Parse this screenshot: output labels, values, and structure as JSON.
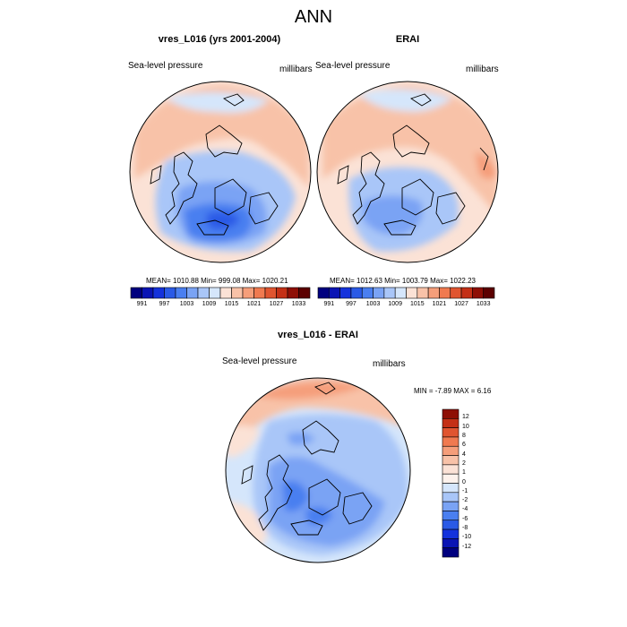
{
  "figure": {
    "title": "ANN",
    "units": "millibars",
    "variable": "Sea-level pressure"
  },
  "panels": [
    {
      "title": "vres_L016 (yrs 2001-2004)",
      "left_label": "Sea-level pressure",
      "right_label": "millibars",
      "stats": "MEAN= 1010.88  Min= 999.08  Max= 1020.21"
    },
    {
      "title": "ERAI",
      "left_label": "Sea-level pressure",
      "right_label": "millibars",
      "stats": "MEAN= 1012.63  Min= 1003.79  Max= 1022.23"
    },
    {
      "title": "vres_L016 - ERAI",
      "left_label": "Sea-level pressure",
      "right_label": "millibars",
      "stats": "MIN =  -7.89 MAX =   6.16"
    }
  ],
  "chart_data": [
    {
      "type": "heatmap",
      "title": "vres_L016 (yrs 2001-2004)",
      "projection": "north polar stereographic",
      "variable": "Sea-level pressure",
      "units": "millibars",
      "mean": 1010.88,
      "min": 999.08,
      "max": 1020.21,
      "colorbar_levels": [
        991,
        994,
        997,
        1000,
        1003,
        1006,
        1009,
        1012,
        1015,
        1018,
        1021,
        1024,
        1027,
        1030,
        1033
      ],
      "colorbar_labels": [
        "991",
        "997",
        "1003",
        "1009",
        "1015",
        "1021",
        "1027",
        "1033"
      ],
      "colorbar_colors": [
        "#00007f",
        "#0a14b4",
        "#1432dc",
        "#2a5ae6",
        "#4a7ff0",
        "#7aa3f4",
        "#a9c6f8",
        "#d5e6fb",
        "#fbe2d6",
        "#f8c2a8",
        "#f59e7a",
        "#f07a50",
        "#e05530",
        "#c43016",
        "#8e0f05",
        "#5c0000"
      ]
    },
    {
      "type": "heatmap",
      "title": "ERAI",
      "projection": "north polar stereographic",
      "variable": "Sea-level pressure",
      "units": "millibars",
      "mean": 1012.63,
      "min": 1003.79,
      "max": 1022.23,
      "colorbar_levels": [
        991,
        994,
        997,
        1000,
        1003,
        1006,
        1009,
        1012,
        1015,
        1018,
        1021,
        1024,
        1027,
        1030,
        1033
      ],
      "colorbar_labels": [
        "991",
        "997",
        "1003",
        "1009",
        "1015",
        "1021",
        "1027",
        "1033"
      ],
      "colorbar_colors": [
        "#00007f",
        "#0a14b4",
        "#1432dc",
        "#2a5ae6",
        "#4a7ff0",
        "#7aa3f4",
        "#a9c6f8",
        "#d5e6fb",
        "#fbe2d6",
        "#f8c2a8",
        "#f59e7a",
        "#f07a50",
        "#e05530",
        "#c43016",
        "#8e0f05",
        "#5c0000"
      ]
    },
    {
      "type": "heatmap",
      "title": "vres_L016 - ERAI",
      "projection": "north polar stereographic",
      "variable": "Sea-level pressure",
      "units": "millibars",
      "min": -7.89,
      "max": 6.16,
      "colorbar_levels": [
        -12,
        -10,
        -8,
        -6,
        -4,
        -2,
        -1,
        0,
        1,
        2,
        4,
        6,
        8,
        10,
        12
      ],
      "colorbar_labels": [
        "12",
        "10",
        "8",
        "6",
        "4",
        "2",
        "1",
        "0",
        "-1",
        "-2",
        "-4",
        "-6",
        "-8",
        "-10",
        "-12"
      ],
      "colorbar_colors": [
        "#8e0f05",
        "#c43016",
        "#e05530",
        "#f07a50",
        "#f59e7a",
        "#f8c2a8",
        "#fbe2d6",
        "#fdf2ec",
        "#d5e6fb",
        "#a9c6f8",
        "#7aa3f4",
        "#4a7ff0",
        "#2a5ae6",
        "#1432dc",
        "#0a14b4",
        "#00007f"
      ]
    }
  ]
}
